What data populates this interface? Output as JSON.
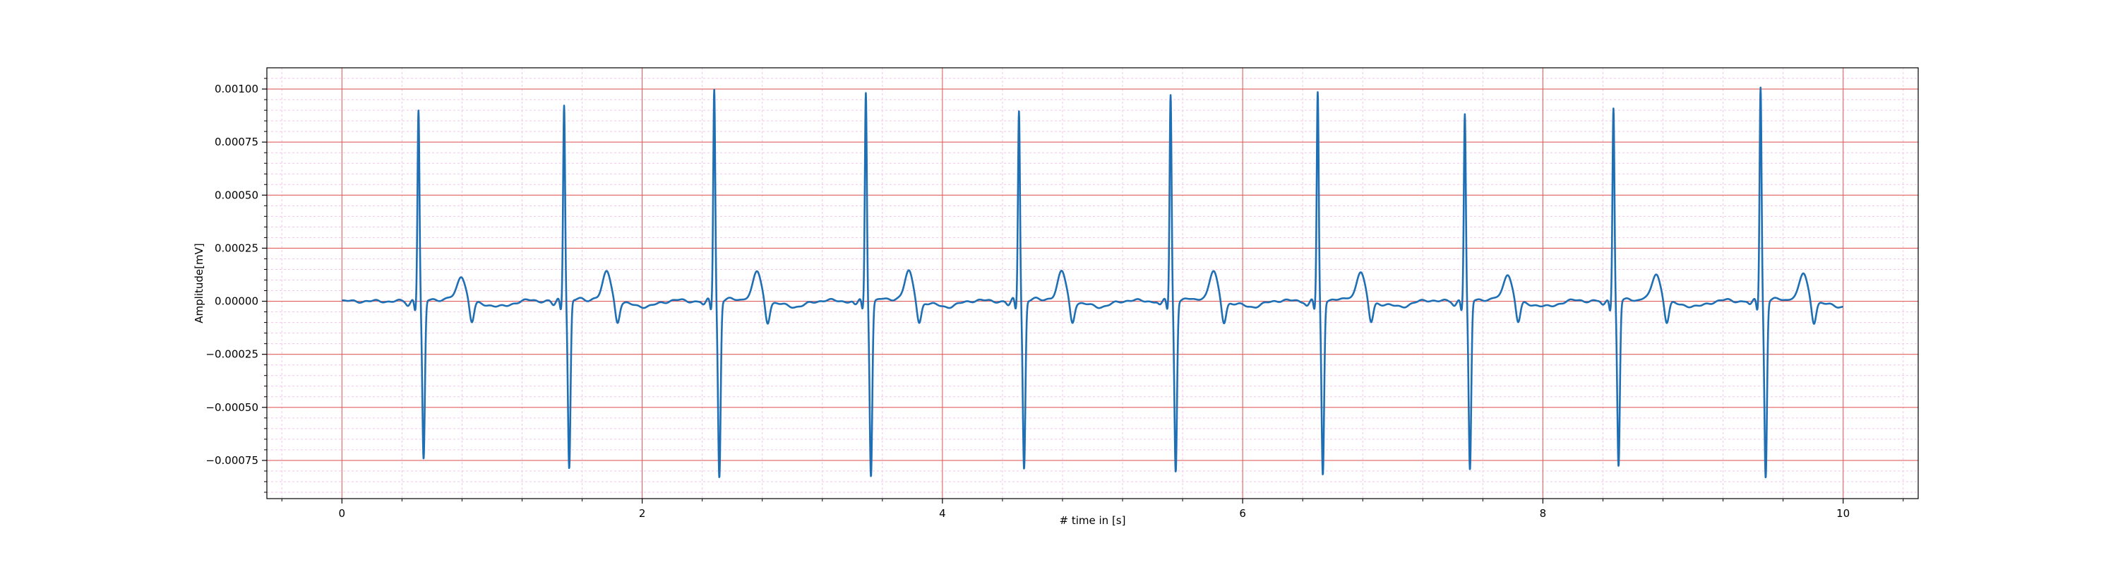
{
  "chart_data": {
    "type": "line",
    "title": "",
    "xlabel": "# time in [s]",
    "ylabel": "Amplitude[mV]",
    "xlim": [
      -0.5,
      10.5
    ],
    "ylim": [
      -0.00093,
      0.0011
    ],
    "x_ticks": [
      0,
      2,
      4,
      6,
      8,
      10
    ],
    "x_tick_labels": [
      "0",
      "2",
      "4",
      "6",
      "8",
      "10"
    ],
    "y_ticks": [
      0.001,
      0.00075,
      0.0005,
      0.00025,
      0.0,
      -0.00025,
      -0.0005,
      -0.00075
    ],
    "y_tick_labels": [
      "0.00100",
      "0.00075",
      "0.00050",
      "0.00025",
      "0.00000",
      "−0.00025",
      "−0.00050",
      "−0.00075"
    ],
    "grid": {
      "major": true,
      "minor": true,
      "major_color": "#e06060",
      "minor_color": "#f3c6ea"
    },
    "line_color": "#1f6fb4",
    "series": [
      {
        "x_start": 0,
        "x_end": 10,
        "beats": [
          {
            "r_time": 0.51,
            "r_peak": 0.0009,
            "s_min": -0.00075,
            "t_peak": 0.00012
          },
          {
            "r_time": 1.48,
            "r_peak": 0.00093,
            "s_min": -0.00079,
            "t_peak": 0.00014
          },
          {
            "r_time": 2.48,
            "r_peak": 0.001,
            "s_min": -0.00083,
            "t_peak": 0.00014
          },
          {
            "r_time": 3.49,
            "r_peak": 0.00098,
            "s_min": -0.00082,
            "t_peak": 0.00014
          },
          {
            "r_time": 4.51,
            "r_peak": 0.0009,
            "s_min": -0.00079,
            "t_peak": 0.00014
          },
          {
            "r_time": 5.52,
            "r_peak": 0.00097,
            "s_min": -0.0008,
            "t_peak": 0.00014
          },
          {
            "r_time": 6.5,
            "r_peak": 0.00098,
            "s_min": -0.00082,
            "t_peak": 0.00014
          },
          {
            "r_time": 7.48,
            "r_peak": 0.00088,
            "s_min": -0.0008,
            "t_peak": 0.00013
          },
          {
            "r_time": 8.47,
            "r_peak": 0.00091,
            "s_min": -0.00078,
            "t_peak": 0.00013
          },
          {
            "r_time": 9.45,
            "r_peak": 0.00101,
            "s_min": -0.00083,
            "t_peak": 0.00013
          }
        ]
      }
    ]
  }
}
